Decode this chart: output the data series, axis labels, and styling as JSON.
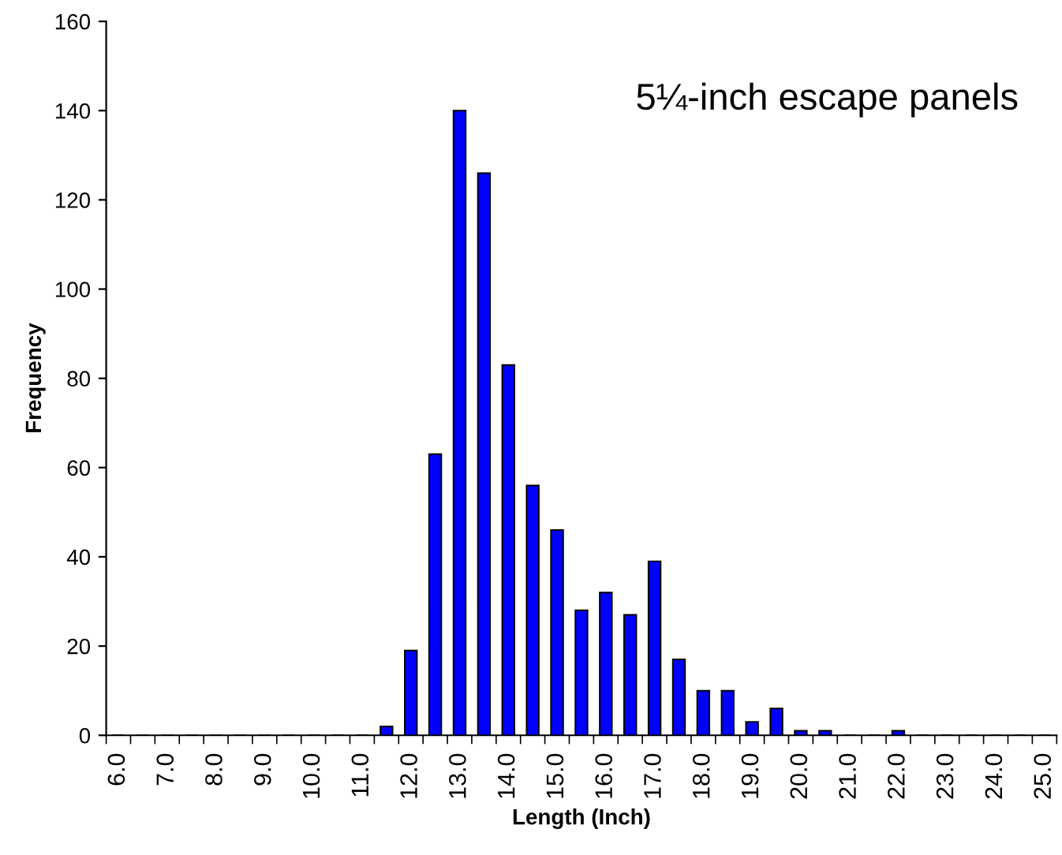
{
  "chart_data": {
    "type": "bar",
    "categories": [
      "6.0",
      null,
      "7.0",
      null,
      "8.0",
      null,
      "9.0",
      null,
      "10.0",
      null,
      "11.0",
      null,
      "12.0",
      null,
      "13.0",
      null,
      "14.0",
      null,
      "15.0",
      null,
      "16.0",
      null,
      "17.0",
      null,
      "18.0",
      null,
      "19.0",
      null,
      "20.0",
      null,
      "21.0",
      null,
      "22.0",
      null,
      "23.0",
      null,
      "24.0",
      null,
      "25.0"
    ],
    "values": [
      0,
      0,
      0,
      0,
      0,
      0,
      0,
      0,
      0,
      0,
      0,
      2,
      19,
      63,
      140,
      126,
      83,
      56,
      46,
      28,
      32,
      27,
      39,
      17,
      10,
      10,
      3,
      6,
      1,
      1,
      0,
      0,
      1,
      0,
      0,
      0,
      0,
      0,
      0
    ],
    "color": "#0000ff",
    "xlabel": "Length (Inch)",
    "ylabel": "Frequency",
    "annotations": [
      "5¼-inch escape panels"
    ],
    "ylim": [
      0,
      160
    ],
    "yticks": [
      0,
      20,
      40,
      60,
      80,
      100,
      120,
      140,
      160
    ],
    "grid": false,
    "legend": false
  }
}
